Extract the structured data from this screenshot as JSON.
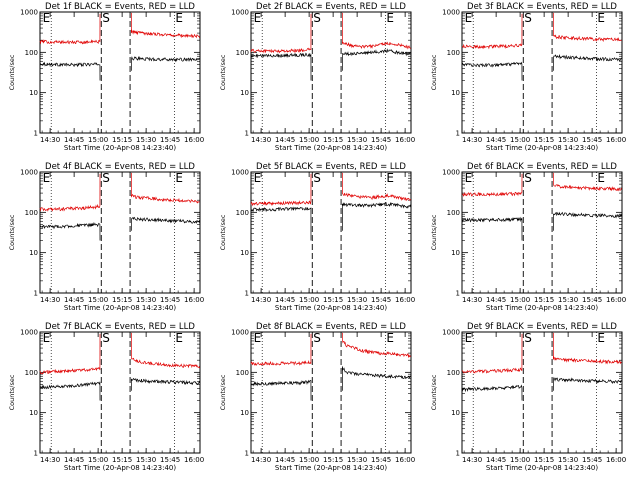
{
  "colors": {
    "events": "#000000",
    "lld": "#e00000",
    "axis": "#000000",
    "background": "#ffffff"
  },
  "charts": [
    {
      "title": "Det 1f  BLACK = Events, RED = LLD",
      "xlabel": "Start Time (20-Apr-08 14:23:40)",
      "ylabel": "Counts/sec"
    },
    {
      "title": "Det 2f  BLACK = Events, RED = LLD",
      "xlabel": "Start Time (20-Apr-08 14:23:40)",
      "ylabel": "Counts/sec"
    },
    {
      "title": "Det 3f  BLACK = Events, RED = LLD",
      "xlabel": "Start Time (20-Apr-08 14:23:40)",
      "ylabel": "Counts/sec"
    },
    {
      "title": "Det 4f  BLACK = Events, RED = LLD",
      "xlabel": "Start Time (20-Apr-08 14:23:40)",
      "ylabel": "Counts/sec"
    },
    {
      "title": "Det 5f  BLACK = Events, RED = LLD",
      "xlabel": "Start Time (20-Apr-08 14:23:40)",
      "ylabel": "Counts/sec"
    },
    {
      "title": "Det 6f  BLACK = Events, RED = LLD",
      "xlabel": "Start Time (20-Apr-08 14:23:40)",
      "ylabel": "Counts/sec"
    },
    {
      "title": "Det 7f  BLACK = Events, RED = LLD",
      "xlabel": "Start Time (20-Apr-08 14:23:40)",
      "ylabel": "Counts/sec"
    },
    {
      "title": "Det 8f  BLACK = Events, RED = LLD",
      "xlabel": "Start Time (20-Apr-08 14:23:40)",
      "ylabel": "Counts/sec"
    },
    {
      "title": "Det 9f  BLACK = Events, RED = LLD",
      "xlabel": "Start Time (20-Apr-08 14:23:40)",
      "ylabel": "Counts/sec"
    }
  ],
  "chart_data": [
    {
      "type": "line",
      "x_ticks": [
        "14:30",
        "14:45",
        "15:00",
        "15:15",
        "15:30",
        "15:45",
        "16:00"
      ],
      "y_ticks": [
        "1",
        "10",
        "100",
        "1000"
      ],
      "y_scale": "log",
      "ylim": [
        1,
        1000
      ],
      "xlim_min": [
        0,
        100
      ],
      "saa_start_min": 38.3,
      "saa_end_min": 56.3,
      "markers": [
        {
          "label": "E",
          "x": 1
        },
        {
          "label": "S",
          "x": 38.3
        },
        {
          "label": "E",
          "x": 84
        }
      ],
      "series": [
        {
          "name": "Events",
          "x": [
            0,
            10,
            20,
            30,
            37.5,
            57,
            60,
            70,
            80,
            90,
            100
          ],
          "y": [
            52,
            50,
            49,
            50,
            51,
            72,
            70,
            68,
            67,
            66,
            65
          ]
        },
        {
          "name": "LLD",
          "x": [
            0,
            10,
            20,
            30,
            37.5,
            57,
            60,
            70,
            80,
            90,
            100
          ],
          "y": [
            185,
            180,
            178,
            180,
            185,
            330,
            315,
            290,
            270,
            260,
            250
          ]
        }
      ]
    },
    {
      "type": "line",
      "x_ticks": [
        "14:30",
        "14:45",
        "15:00",
        "15:15",
        "15:30",
        "15:45",
        "16:00"
      ],
      "y_ticks": [
        "1",
        "10",
        "100",
        "1000"
      ],
      "y_scale": "log",
      "ylim": [
        1,
        1000
      ],
      "xlim_min": [
        0,
        100
      ],
      "saa_start_min": 38.3,
      "saa_end_min": 56.3,
      "markers": [
        {
          "label": "E",
          "x": 1
        },
        {
          "label": "S",
          "x": 38.3
        },
        {
          "label": "E",
          "x": 84
        }
      ],
      "series": [
        {
          "name": "Events",
          "x": [
            0,
            10,
            20,
            30,
            37.5,
            57,
            65,
            75,
            85,
            95,
            100
          ],
          "y": [
            80,
            82,
            84,
            86,
            88,
            90,
            95,
            98,
            110,
            95,
            90
          ]
        },
        {
          "name": "LLD",
          "x": [
            0,
            10,
            20,
            30,
            37.5,
            57,
            65,
            75,
            85,
            95,
            100
          ],
          "y": [
            110,
            108,
            108,
            112,
            118,
            170,
            140,
            140,
            170,
            145,
            130
          ]
        }
      ]
    },
    {
      "type": "line",
      "x_ticks": [
        "14:30",
        "14:45",
        "15:00",
        "15:15",
        "15:30",
        "15:45",
        "16:00"
      ],
      "y_ticks": [
        "1",
        "10",
        "100",
        "1000"
      ],
      "y_scale": "log",
      "ylim": [
        1,
        1000
      ],
      "xlim_min": [
        0,
        100
      ],
      "saa_start_min": 38.3,
      "saa_end_min": 56.3,
      "markers": [
        {
          "label": "E",
          "x": 1
        },
        {
          "label": "S",
          "x": 38.3
        },
        {
          "label": "E",
          "x": 84
        }
      ],
      "series": [
        {
          "name": "Events",
          "x": [
            0,
            10,
            20,
            30,
            37.5,
            57,
            60,
            70,
            80,
            90,
            100
          ],
          "y": [
            50,
            48,
            48,
            50,
            52,
            80,
            78,
            74,
            70,
            68,
            66
          ]
        },
        {
          "name": "LLD",
          "x": [
            0,
            10,
            20,
            30,
            37.5,
            57,
            60,
            70,
            80,
            90,
            100
          ],
          "y": [
            140,
            138,
            140,
            145,
            150,
            250,
            240,
            225,
            215,
            210,
            205
          ]
        }
      ]
    },
    {
      "type": "line",
      "x_ticks": [
        "14:30",
        "14:45",
        "15:00",
        "15:15",
        "15:30",
        "15:45",
        "16:00"
      ],
      "y_ticks": [
        "1",
        "10",
        "100",
        "1000"
      ],
      "y_scale": "log",
      "ylim": [
        1,
        1000
      ],
      "xlim_min": [
        0,
        100
      ],
      "saa_start_min": 38.3,
      "saa_end_min": 56.3,
      "markers": [
        {
          "label": "E",
          "x": 1
        },
        {
          "label": "S",
          "x": 38.3
        },
        {
          "label": "E",
          "x": 84
        }
      ],
      "series": [
        {
          "name": "Events",
          "x": [
            0,
            10,
            20,
            30,
            37.5,
            57,
            60,
            70,
            80,
            90,
            100
          ],
          "y": [
            45,
            44,
            46,
            48,
            50,
            70,
            68,
            66,
            62,
            60,
            58
          ]
        },
        {
          "name": "LLD",
          "x": [
            0,
            10,
            20,
            30,
            37.5,
            57,
            60,
            70,
            80,
            90,
            100
          ],
          "y": [
            120,
            118,
            125,
            130,
            140,
            260,
            240,
            220,
            205,
            195,
            185
          ]
        }
      ]
    },
    {
      "type": "line",
      "x_ticks": [
        "14:30",
        "14:45",
        "15:00",
        "15:15",
        "15:30",
        "15:45",
        "16:00"
      ],
      "y_ticks": [
        "1",
        "10",
        "100",
        "1000"
      ],
      "y_scale": "log",
      "ylim": [
        1,
        1000
      ],
      "xlim_min": [
        0,
        100
      ],
      "saa_start_min": 38.3,
      "saa_end_min": 56.3,
      "markers": [
        {
          "label": "E",
          "x": 1
        },
        {
          "label": "S",
          "x": 38.3
        },
        {
          "label": "E",
          "x": 84
        }
      ],
      "series": [
        {
          "name": "Events",
          "x": [
            0,
            10,
            20,
            30,
            37.5,
            57,
            65,
            75,
            85,
            95,
            100
          ],
          "y": [
            118,
            118,
            120,
            122,
            125,
            155,
            150,
            148,
            160,
            145,
            140
          ]
        },
        {
          "name": "LLD",
          "x": [
            0,
            10,
            20,
            30,
            37.5,
            57,
            65,
            75,
            85,
            95,
            100
          ],
          "y": [
            165,
            165,
            168,
            170,
            175,
            290,
            250,
            230,
            260,
            220,
            205
          ]
        }
      ]
    },
    {
      "type": "line",
      "x_ticks": [
        "14:30",
        "14:45",
        "15:00",
        "15:15",
        "15:30",
        "15:45",
        "16:00"
      ],
      "y_ticks": [
        "1",
        "10",
        "100",
        "1000"
      ],
      "y_scale": "log",
      "ylim": [
        1,
        1000
      ],
      "xlim_min": [
        0,
        100
      ],
      "saa_start_min": 38.3,
      "saa_end_min": 56.3,
      "markers": [
        {
          "label": "E",
          "x": 1
        },
        {
          "label": "S",
          "x": 38.3
        },
        {
          "label": "E",
          "x": 84
        }
      ],
      "series": [
        {
          "name": "Events",
          "x": [
            0,
            10,
            20,
            30,
            37.5,
            57,
            60,
            70,
            80,
            90,
            100
          ],
          "y": [
            65,
            64,
            65,
            66,
            68,
            95,
            92,
            88,
            85,
            83,
            80
          ]
        },
        {
          "name": "LLD",
          "x": [
            0,
            10,
            20,
            30,
            37.5,
            57,
            60,
            70,
            80,
            90,
            100
          ],
          "y": [
            280,
            280,
            282,
            285,
            290,
            480,
            440,
            410,
            395,
            390,
            380
          ]
        }
      ]
    },
    {
      "type": "line",
      "x_ticks": [
        "14:30",
        "14:45",
        "15:00",
        "15:15",
        "15:30",
        "15:45",
        "16:00"
      ],
      "y_ticks": [
        "1",
        "10",
        "100",
        "1000"
      ],
      "y_scale": "log",
      "ylim": [
        1,
        1000
      ],
      "xlim_min": [
        0,
        100
      ],
      "saa_start_min": 38.3,
      "saa_end_min": 56.3,
      "markers": [
        {
          "label": "E",
          "x": 1
        },
        {
          "label": "S",
          "x": 38.3
        },
        {
          "label": "E",
          "x": 84
        }
      ],
      "series": [
        {
          "name": "Events",
          "x": [
            0,
            10,
            20,
            30,
            37.5,
            57,
            60,
            70,
            80,
            90,
            100
          ],
          "y": [
            42,
            44,
            46,
            50,
            55,
            68,
            64,
            60,
            58,
            56,
            54
          ]
        },
        {
          "name": "LLD",
          "x": [
            0,
            10,
            20,
            30,
            37.5,
            57,
            60,
            70,
            80,
            90,
            100
          ],
          "y": [
            100,
            105,
            110,
            115,
            125,
            230,
            190,
            165,
            150,
            145,
            140
          ]
        }
      ]
    },
    {
      "type": "line",
      "x_ticks": [
        "14:30",
        "14:45",
        "15:00",
        "15:15",
        "15:30",
        "15:45",
        "16:00"
      ],
      "y_ticks": [
        "1",
        "10",
        "100",
        "1000"
      ],
      "y_scale": "log",
      "ylim": [
        1,
        1000
      ],
      "xlim_min": [
        0,
        100
      ],
      "saa_start_min": 38.3,
      "saa_end_min": 56.3,
      "markers": [
        {
          "label": "E",
          "x": 1
        },
        {
          "label": "S",
          "x": 38.3
        },
        {
          "label": "E",
          "x": 84
        }
      ],
      "series": [
        {
          "name": "Events",
          "x": [
            0,
            10,
            20,
            30,
            37.5,
            57,
            60,
            70,
            80,
            90,
            100
          ],
          "y": [
            52,
            52,
            54,
            55,
            58,
            130,
            100,
            88,
            82,
            78,
            75
          ]
        },
        {
          "name": "LLD",
          "x": [
            0,
            10,
            20,
            30,
            37.5,
            57,
            60,
            70,
            80,
            90,
            100
          ],
          "y": [
            165,
            165,
            168,
            170,
            175,
            620,
            450,
            340,
            300,
            280,
            260
          ]
        }
      ]
    },
    {
      "type": "line",
      "x_ticks": [
        "14:30",
        "14:45",
        "15:00",
        "15:15",
        "15:30",
        "15:45",
        "16:00"
      ],
      "y_ticks": [
        "1",
        "10",
        "100",
        "1000"
      ],
      "y_scale": "log",
      "ylim": [
        1,
        1000
      ],
      "xlim_min": [
        0,
        100
      ],
      "saa_start_min": 38.3,
      "saa_end_min": 56.3,
      "markers": [
        {
          "label": "E",
          "x": 1
        },
        {
          "label": "S",
          "x": 38.3
        },
        {
          "label": "E",
          "x": 84
        }
      ],
      "series": [
        {
          "name": "Events",
          "x": [
            0,
            10,
            20,
            30,
            37.5,
            57,
            60,
            70,
            80,
            90,
            100
          ],
          "y": [
            38,
            39,
            40,
            42,
            45,
            68,
            66,
            64,
            62,
            60,
            58
          ]
        },
        {
          "name": "LLD",
          "x": [
            0,
            10,
            20,
            30,
            37.5,
            57,
            60,
            70,
            80,
            90,
            100
          ],
          "y": [
            105,
            105,
            108,
            112,
            118,
            220,
            210,
            200,
            190,
            185,
            180
          ]
        }
      ]
    }
  ]
}
